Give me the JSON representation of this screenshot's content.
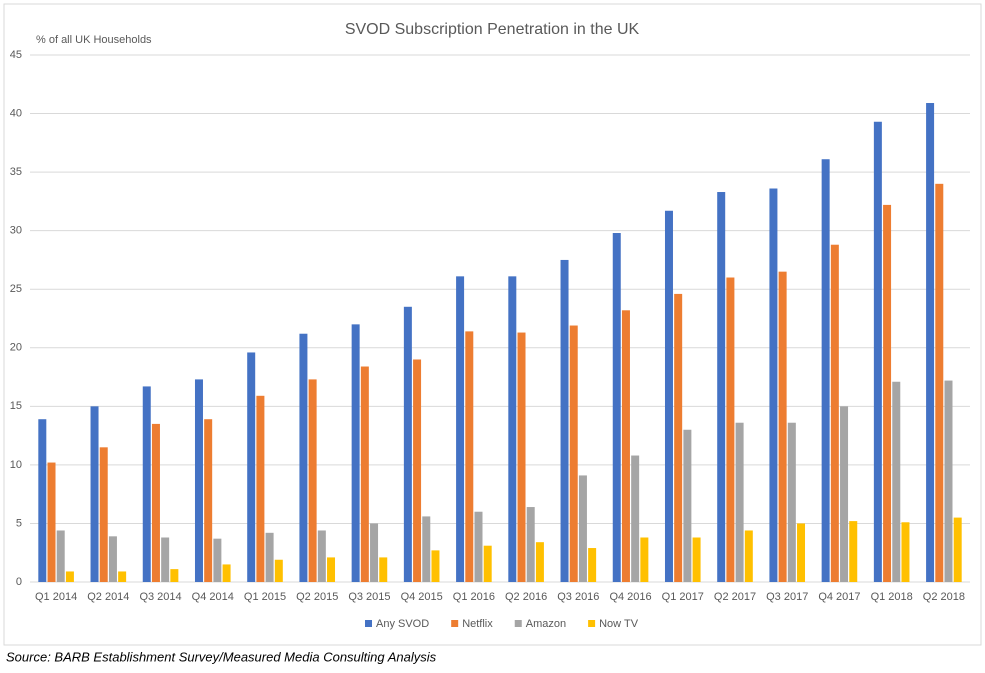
{
  "chart_data": {
    "type": "bar",
    "title": "SVOD Subscription Penetration in the UK",
    "y_label": "% of all UK Households",
    "categories": [
      "Q1 2014",
      "Q2 2014",
      "Q3 2014",
      "Q4 2014",
      "Q1 2015",
      "Q2 2015",
      "Q3 2015",
      "Q4 2015",
      "Q1 2016",
      "Q2 2016",
      "Q3 2016",
      "Q4 2016",
      "Q1 2017",
      "Q2 2017",
      "Q3 2017",
      "Q4 2017",
      "Q1 2018",
      "Q2 2018"
    ],
    "series": [
      {
        "name": "Any SVOD",
        "color": "#4472c4",
        "values": [
          13.9,
          15.0,
          16.7,
          17.3,
          19.6,
          21.2,
          22.0,
          23.5,
          26.1,
          26.1,
          27.5,
          29.8,
          31.7,
          33.3,
          33.6,
          36.1,
          39.3,
          40.9
        ]
      },
      {
        "name": "Netflix",
        "color": "#ed7d31",
        "values": [
          10.2,
          11.5,
          13.5,
          13.9,
          15.9,
          17.3,
          18.4,
          19.0,
          21.4,
          21.3,
          21.9,
          23.2,
          24.6,
          26.0,
          26.5,
          28.8,
          32.2,
          34.0
        ]
      },
      {
        "name": "Amazon",
        "color": "#a5a5a5",
        "values": [
          4.4,
          3.9,
          3.8,
          3.7,
          4.2,
          4.4,
          5.0,
          5.6,
          6.0,
          6.4,
          9.1,
          10.8,
          13.0,
          13.6,
          13.6,
          15.0,
          17.1,
          17.2
        ]
      },
      {
        "name": "Now TV",
        "color": "#ffc000",
        "values": [
          0.9,
          0.9,
          1.1,
          1.5,
          1.9,
          2.1,
          2.1,
          2.7,
          3.1,
          3.4,
          2.9,
          3.8,
          3.8,
          4.4,
          5.0,
          5.2,
          5.1,
          5.5
        ]
      }
    ],
    "ylim": [
      0,
      45
    ],
    "yticks": [
      0,
      5,
      10,
      15,
      20,
      25,
      30,
      35,
      40,
      45
    ],
    "grid": true,
    "legend": "bottom"
  },
  "source": "Source: BARB Establishment Survey/Measured Media Consulting Analysis"
}
